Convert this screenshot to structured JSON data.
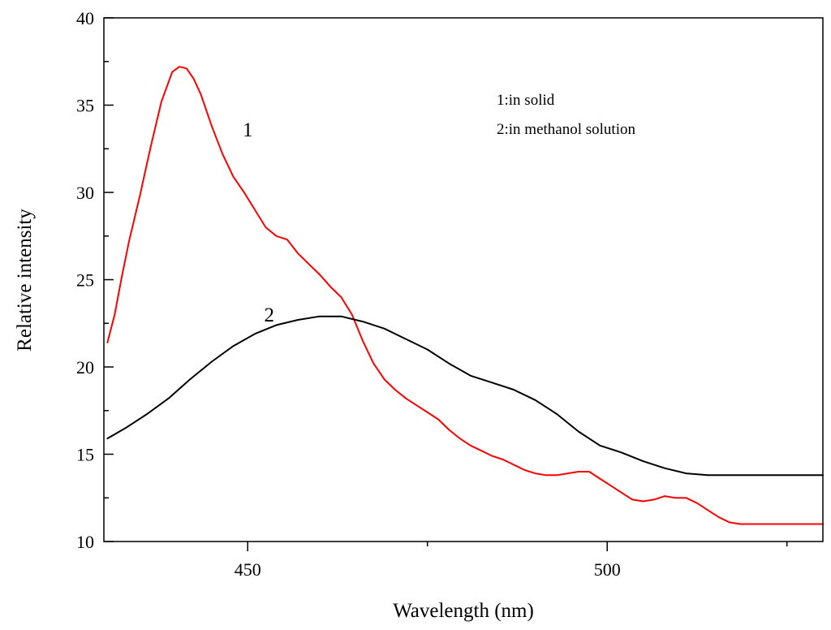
{
  "chart_data": {
    "type": "line",
    "title": "",
    "xlabel": "Wavelength (nm)",
    "ylabel": "Relative intensity",
    "xlim": [
      430,
      530
    ],
    "ylim": [
      10,
      40
    ],
    "x_ticks": [
      450,
      500
    ],
    "x_tick_labels": [
      "450",
      "500"
    ],
    "x_minor_ticks": [
      425,
      475,
      525
    ],
    "y_ticks": [
      10,
      15,
      20,
      25,
      30,
      35,
      40
    ],
    "y_tick_labels": [
      "10",
      "15",
      "20",
      "25",
      "30",
      "35",
      "40"
    ],
    "legend": [
      "1:in solid",
      "2:in methanol solution"
    ],
    "legend_position": "top-right",
    "series": [
      {
        "name": "1",
        "label": "1",
        "color": "#ff0000",
        "label_anchor": [
          450,
          33.2
        ],
        "x": [
          430.5,
          431.5,
          432.5,
          433.5,
          435,
          436.5,
          438,
          439.5,
          440.5,
          441.5,
          442.5,
          443.5,
          445,
          446.5,
          448,
          449.5,
          451,
          452.5,
          454,
          455.5,
          457,
          458.5,
          460,
          461.5,
          463,
          464.5,
          466,
          467.5,
          469,
          470.5,
          472,
          473.5,
          475,
          476.5,
          478,
          479.5,
          481,
          482.5,
          484,
          485.5,
          487,
          488.5,
          490,
          491.5,
          493,
          494.5,
          496,
          497.5,
          499,
          500.5,
          502,
          503.5,
          505,
          506.5,
          508,
          509.5,
          511,
          512.5,
          514,
          515.5,
          517,
          518.5,
          520,
          521.5,
          523,
          524.5,
          526,
          527.5,
          529,
          530
        ],
        "y": [
          21.4,
          23.0,
          25.2,
          27.2,
          29.8,
          32.6,
          35.2,
          36.9,
          37.2,
          37.1,
          36.5,
          35.6,
          33.8,
          32.2,
          30.9,
          30.0,
          29.0,
          28.0,
          27.5,
          27.3,
          26.5,
          25.9,
          25.3,
          24.6,
          24.0,
          23.0,
          21.5,
          20.2,
          19.3,
          18.7,
          18.2,
          17.8,
          17.4,
          17.0,
          16.4,
          15.9,
          15.5,
          15.2,
          14.9,
          14.7,
          14.4,
          14.1,
          13.9,
          13.8,
          13.8,
          13.9,
          14.0,
          14.0,
          13.6,
          13.2,
          12.8,
          12.4,
          12.3,
          12.4,
          12.6,
          12.5,
          12.5,
          12.2,
          11.8,
          11.4,
          11.1,
          11.0,
          11.0,
          11.0,
          11.0,
          11.0,
          11.0,
          11.0,
          11.0,
          11.0
        ]
      },
      {
        "name": "2",
        "label": "2",
        "color": "#000000",
        "label_anchor": [
          453,
          22.6
        ],
        "x": [
          430.5,
          433,
          436,
          439,
          442,
          445,
          448,
          451,
          454,
          457,
          460,
          463,
          466,
          469,
          472,
          475,
          478,
          481,
          484,
          487,
          490,
          493,
          496,
          499,
          502,
          505,
          508,
          511,
          514,
          517,
          520,
          523,
          526,
          529,
          530
        ],
        "y": [
          15.9,
          16.5,
          17.3,
          18.2,
          19.3,
          20.3,
          21.2,
          21.9,
          22.4,
          22.7,
          22.9,
          22.9,
          22.6,
          22.2,
          21.6,
          21.0,
          20.2,
          19.5,
          19.1,
          18.7,
          18.1,
          17.3,
          16.3,
          15.5,
          15.1,
          14.6,
          14.2,
          13.9,
          13.8,
          13.8,
          13.8,
          13.8,
          13.8,
          13.8,
          13.8
        ]
      }
    ]
  }
}
